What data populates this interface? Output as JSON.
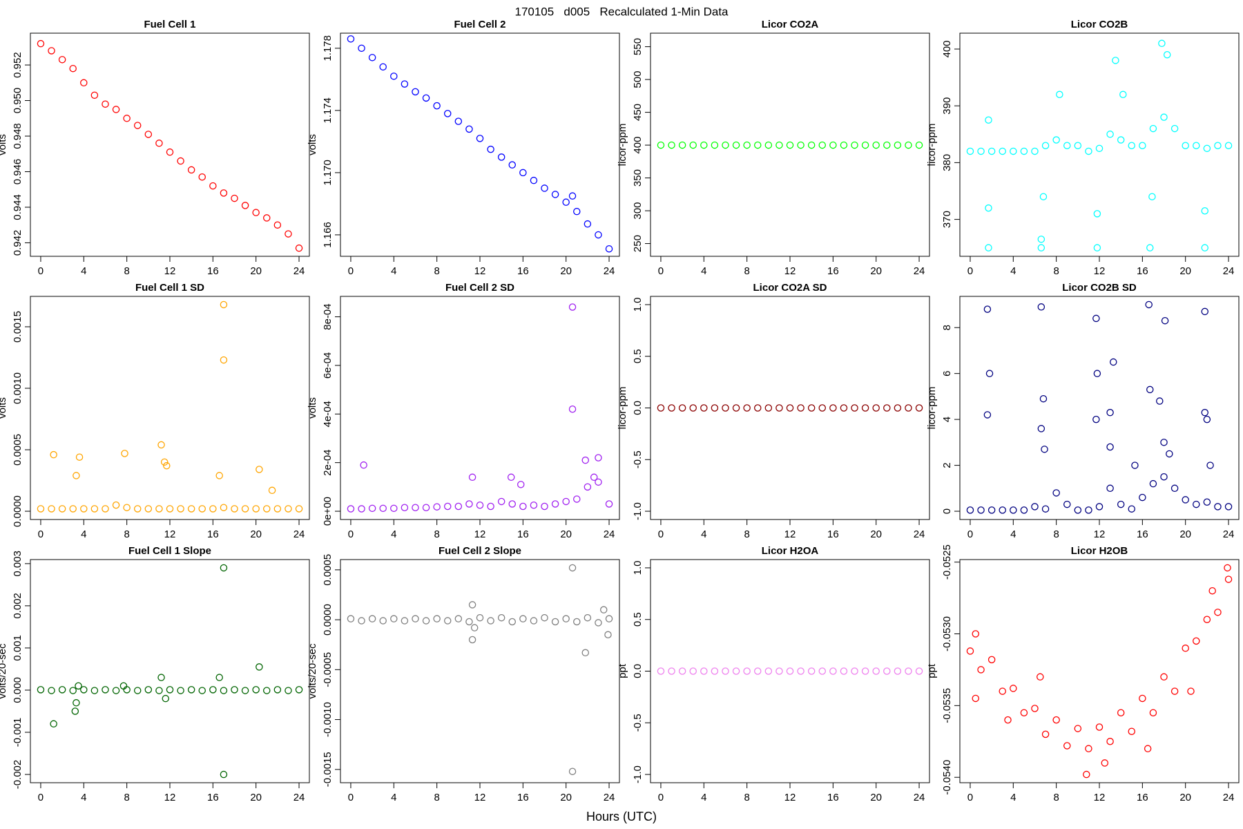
{
  "title": "170105   d005   Recalculated 1-Min Data",
  "xlabel": "Hours (UTC)",
  "chart_data": [
    {
      "type": "scatter",
      "title": "Fuel Cell 1",
      "ylabel": "volts",
      "color": "#ff0000",
      "x": [
        0,
        1,
        2,
        3,
        4,
        5,
        6,
        7,
        8,
        9,
        10,
        11,
        12,
        13,
        14,
        15,
        16,
        17,
        18,
        19,
        20,
        21,
        22,
        23,
        24
      ],
      "values": [
        0.9532,
        0.9528,
        0.9523,
        0.9518,
        0.951,
        0.9503,
        0.9498,
        0.9495,
        0.949,
        0.9486,
        0.9481,
        0.9476,
        0.9471,
        0.9466,
        0.9461,
        0.9457,
        0.9452,
        0.9448,
        0.9445,
        0.9441,
        0.9437,
        0.9434,
        0.943,
        0.9425,
        0.9417
      ],
      "xlim": [
        -0.96,
        24.96
      ],
      "xticks": [
        0,
        4,
        8,
        12,
        16,
        20,
        24
      ],
      "ylim": [
        0.94124,
        0.95379
      ],
      "yticks": [
        0.942,
        0.944,
        0.946,
        0.948,
        {
          "value": 0.95,
          "label": "0.950"
        },
        0.952
      ]
    },
    {
      "type": "scatter",
      "title": "Fuel Cell 2",
      "ylabel": "volts",
      "color": "#0000ff",
      "x": [
        0,
        1,
        2,
        3,
        4,
        5,
        6,
        7,
        8,
        9,
        10,
        11,
        12,
        13,
        14,
        15,
        16,
        17,
        18,
        19,
        20,
        21,
        22,
        23,
        24,
        20.6
      ],
      "values": [
        1.1786,
        1.178,
        1.1774,
        1.1768,
        1.1762,
        1.1757,
        1.1752,
        1.1748,
        1.1743,
        1.1738,
        1.1733,
        1.1728,
        1.1722,
        1.1715,
        1.171,
        1.1705,
        1.17,
        1.1695,
        1.169,
        1.1686,
        1.1681,
        1.1675,
        1.1667,
        1.166,
        1.1651,
        1.1685
      ],
      "xlim": [
        -0.96,
        24.96
      ],
      "xticks": [
        0,
        4,
        8,
        12,
        16,
        20,
        24
      ],
      "ylim": [
        1.16462,
        1.17897
      ],
      "yticks": [
        1.166,
        {
          "value": 1.17,
          "label": "1.170"
        },
        1.174,
        1.178
      ]
    },
    {
      "type": "scatter",
      "title": "Licor CO2A",
      "ylabel": "licor-ppm",
      "color": "#00ff00",
      "x": [
        0,
        1,
        2,
        3,
        4,
        5,
        6,
        7,
        8,
        9,
        10,
        11,
        12,
        13,
        14,
        15,
        16,
        17,
        18,
        19,
        20,
        21,
        22,
        23,
        24
      ],
      "values": [
        400,
        400,
        400,
        400,
        400,
        400,
        400,
        400,
        400,
        400,
        400,
        400,
        400,
        400,
        400,
        400,
        400,
        400,
        400,
        400,
        400,
        400,
        400,
        400,
        400
      ],
      "xlim": [
        -0.96,
        24.96
      ],
      "xticks": [
        0,
        4,
        8,
        12,
        16,
        20,
        24
      ],
      "ylim": [
        230.6,
        570.6
      ],
      "yticks": [
        250,
        300,
        350,
        400,
        450,
        500,
        550
      ]
    },
    {
      "type": "scatter",
      "title": "Licor CO2B",
      "ylabel": "licor-ppm",
      "color": "#00ffff",
      "x": [
        0,
        1,
        2,
        3,
        4,
        5,
        6,
        7,
        8,
        9,
        10,
        11,
        12,
        13,
        14,
        15,
        16,
        17,
        18,
        19,
        20,
        21,
        22,
        23,
        24,
        1.7,
        1.7,
        1.7,
        6.6,
        6.6,
        6.8,
        11.8,
        11.8,
        13.5,
        16.7,
        16.9,
        17.8,
        18.3,
        21.8,
        21.8,
        8.3,
        14.2
      ],
      "values": [
        382,
        382,
        382,
        382,
        382,
        382,
        382,
        383,
        384,
        383,
        383,
        382,
        382.5,
        385,
        384,
        383,
        383,
        386,
        388,
        386,
        383,
        383,
        382.5,
        383,
        383,
        387.5,
        365,
        372,
        365,
        366.5,
        374,
        365,
        371,
        398,
        365,
        374,
        401,
        399,
        365,
        371.5,
        392,
        392
      ],
      "xlim": [
        -0.96,
        24.96
      ],
      "xticks": [
        0,
        4,
        8,
        12,
        16,
        20,
        24
      ],
      "ylim": [
        363.5,
        402.8
      ],
      "yticks": [
        370,
        380,
        390,
        400
      ]
    },
    {
      "type": "scatter",
      "title": "Fuel Cell 1 SD",
      "ylabel": "volts",
      "color": "#ffa500",
      "x": [
        0,
        1,
        2,
        3,
        4,
        5,
        6,
        7,
        8,
        9,
        10,
        11,
        12,
        13,
        14,
        15,
        16,
        17,
        18,
        19,
        20,
        21,
        22,
        23,
        24,
        1.2,
        3.3,
        3.6,
        7.8,
        11.2,
        11.5,
        11.7,
        16.6,
        17,
        17,
        20.3,
        21.5
      ],
      "values": [
        2e-05,
        2e-05,
        2e-05,
        2e-05,
        2e-05,
        2e-05,
        2e-05,
        5e-05,
        3e-05,
        2e-05,
        2e-05,
        2e-05,
        2e-05,
        2e-05,
        2e-05,
        2e-05,
        2e-05,
        3e-05,
        2e-05,
        2e-05,
        2e-05,
        2e-05,
        2e-05,
        2e-05,
        2e-05,
        0.00046,
        0.00029,
        0.00044,
        0.00047,
        0.00054,
        0.0004,
        0.00037,
        0.00029,
        0.00168,
        0.00123,
        0.00034,
        0.00017
      ],
      "xlim": [
        -0.96,
        24.96
      ],
      "xticks": [
        0,
        4,
        8,
        12,
        16,
        20,
        24
      ],
      "ylim": [
        -6.72e-05,
        0.0017472
      ],
      "yticks": [
        {
          "value": 0,
          "label": "0.0000"
        },
        0.0005,
        {
          "value": 0.001,
          "label": "0.0010"
        },
        0.0015
      ]
    },
    {
      "type": "scatter",
      "title": "Fuel Cell 2 SD",
      "ylabel": "volts",
      "color": "#a020f0",
      "x": [
        0,
        1,
        2,
        3,
        4,
        5,
        6,
        7,
        8,
        9,
        10,
        11,
        12,
        13,
        14,
        15,
        16,
        17,
        18,
        19,
        20,
        21,
        22,
        23,
        24,
        1.2,
        20.6,
        20.6,
        21.8,
        23,
        11.3,
        14.9,
        22.6,
        15.8
      ],
      "values": [
        1e-05,
        1e-05,
        1.2e-05,
        1.2e-05,
        1.2e-05,
        1.5e-05,
        1.5e-05,
        1.5e-05,
        1.8e-05,
        2e-05,
        2e-05,
        3e-05,
        2.5e-05,
        2e-05,
        4e-05,
        3e-05,
        2e-05,
        2.5e-05,
        2e-05,
        3e-05,
        4e-05,
        5e-05,
        0.0001,
        0.00012,
        3e-05,
        0.00019,
        0.00084,
        0.00042,
        0.00021,
        0.00022,
        0.00014,
        0.00014,
        0.00014,
        0.00011
      ],
      "xlim": [
        -0.96,
        24.96
      ],
      "xticks": [
        0,
        4,
        8,
        12,
        16,
        20,
        24
      ],
      "ylim": [
        -3.4e-05,
        0.000884
      ],
      "yticks": [
        {
          "value": 0,
          "label": "0e+00"
        },
        {
          "value": 0.0002,
          "label": "2e-04"
        },
        {
          "value": 0.0004,
          "label": "4e-04"
        },
        {
          "value": 0.0006,
          "label": "6e-04"
        },
        {
          "value": 0.0008,
          "label": "8e-04"
        }
      ]
    },
    {
      "type": "scatter",
      "title": "Licor CO2A SD",
      "ylabel": "licor-ppm",
      "color": "#8b0000",
      "x": [
        0,
        1,
        2,
        3,
        4,
        5,
        6,
        7,
        8,
        9,
        10,
        11,
        12,
        13,
        14,
        15,
        16,
        17,
        18,
        19,
        20,
        21,
        22,
        23,
        24
      ],
      "values": [
        0,
        0,
        0,
        0,
        0,
        0,
        0,
        0,
        0,
        0,
        0,
        0,
        0,
        0,
        0,
        0,
        0,
        0,
        0,
        0,
        0,
        0,
        0,
        0,
        0
      ],
      "xlim": [
        -0.96,
        24.96
      ],
      "xticks": [
        0,
        4,
        8,
        12,
        16,
        20,
        24
      ],
      "ylim": [
        -1.08,
        1.08
      ],
      "yticks": [
        {
          "value": -1,
          "label": "-1.0"
        },
        -0.5,
        {
          "value": 0,
          "label": "0.0"
        },
        0.5,
        {
          "value": 1,
          "label": "1.0"
        }
      ]
    },
    {
      "type": "scatter",
      "title": "Licor CO2B SD",
      "ylabel": "licor-ppm",
      "color": "#000080",
      "x": [
        0,
        1,
        2,
        3,
        4,
        5,
        6,
        7,
        8,
        9,
        10,
        11,
        12,
        13,
        14,
        15,
        16,
        17,
        18,
        19,
        20,
        21,
        22,
        23,
        24,
        1.6,
        1.6,
        1.8,
        6.6,
        6.6,
        6.8,
        6.9,
        11.7,
        11.7,
        11.8,
        13.3,
        13,
        16.6,
        16.7,
        17.6,
        18.1,
        18,
        21.8,
        21.8,
        22,
        22.3,
        13,
        18.5,
        15.3
      ],
      "values": [
        0.05,
        0.05,
        0.05,
        0.05,
        0.05,
        0.05,
        0.2,
        0.1,
        0.8,
        0.3,
        0.05,
        0.05,
        0.2,
        1,
        0.3,
        0.1,
        0.6,
        1.2,
        1.5,
        1,
        0.5,
        0.3,
        0.4,
        0.2,
        0.2,
        8.8,
        4.2,
        6,
        8.9,
        3.6,
        4.9,
        2.7,
        8.4,
        4,
        6,
        6.5,
        4.3,
        9,
        5.3,
        4.8,
        8.3,
        3,
        8.7,
        4.3,
        4,
        2,
        2.8,
        2.5,
        2
      ],
      "xlim": [
        -0.96,
        24.96
      ],
      "xticks": [
        0,
        4,
        8,
        12,
        16,
        20,
        24
      ],
      "ylim": [
        -0.36,
        9.36
      ],
      "yticks": [
        0,
        2,
        4,
        6,
        8
      ]
    },
    {
      "type": "scatter",
      "title": "Fuel Cell 1 Slope",
      "ylabel": "volts/20-sec",
      "color": "#006400",
      "x": [
        0,
        1,
        2,
        3,
        4,
        5,
        6,
        7,
        8,
        9,
        10,
        11,
        12,
        13,
        14,
        15,
        16,
        17,
        18,
        19,
        20,
        21,
        22,
        23,
        24,
        1.2,
        3.2,
        3.3,
        3.5,
        11.2,
        16.6,
        17,
        17,
        20.3,
        11.6,
        7.7
      ],
      "values": [
        1e-05,
        -1e-05,
        1e-05,
        -1e-05,
        1e-05,
        -1e-05,
        1e-05,
        -1e-05,
        1e-05,
        -1e-05,
        1e-05,
        -1e-05,
        1e-05,
        -1e-05,
        1e-05,
        -1e-05,
        1e-05,
        -1e-05,
        1e-05,
        -1e-05,
        1e-05,
        -1e-05,
        1e-05,
        -1e-05,
        1e-05,
        -0.0008,
        -0.0005,
        -0.0003,
        0.0001,
        0.0003,
        0.0003,
        0.0029,
        -0.002,
        0.00055,
        -0.0002,
        0.0001
      ],
      "xlim": [
        -0.96,
        24.96
      ],
      "xticks": [
        0,
        4,
        8,
        12,
        16,
        20,
        24
      ],
      "ylim": [
        -0.002196,
        0.003096
      ],
      "yticks": [
        -0.002,
        -0.001,
        {
          "value": 0,
          "label": "0.000"
        },
        0.001,
        0.002,
        0.003
      ]
    },
    {
      "type": "scatter",
      "title": "Fuel Cell 2 Slope",
      "ylabel": "volts/20-sec",
      "color": "#7f7f7f",
      "x": [
        0,
        1,
        2,
        3,
        4,
        5,
        6,
        7,
        8,
        9,
        10,
        11,
        12,
        13,
        14,
        15,
        16,
        17,
        18,
        19,
        20,
        21,
        22,
        23,
        24,
        20.6,
        20.6,
        21.8,
        11.3,
        11.3,
        11.5,
        23.9,
        23.5
      ],
      "values": [
        1e-05,
        -1e-05,
        1e-05,
        -1e-05,
        1e-05,
        -1e-05,
        1e-05,
        -1e-05,
        1e-05,
        -1e-05,
        1e-05,
        -2e-05,
        2e-05,
        -1e-05,
        2e-05,
        -2e-05,
        1e-05,
        -1e-05,
        2e-05,
        -2e-05,
        1e-05,
        -2e-05,
        2e-05,
        -3e-05,
        1e-05,
        0.00052,
        -0.00152,
        -0.00033,
        0.00015,
        -0.0002,
        -8e-05,
        -0.00015,
        0.0001
      ],
      "xlim": [
        -0.96,
        24.96
      ],
      "xticks": [
        0,
        4,
        8,
        12,
        16,
        20,
        24
      ],
      "ylim": [
        -0.0016328,
        0.0006028
      ],
      "yticks": [
        -0.0015,
        {
          "value": -0.001,
          "label": "-0.0010"
        },
        -0.0005,
        {
          "value": 0,
          "label": "0.0000"
        },
        0.0005
      ]
    },
    {
      "type": "scatter",
      "title": "Licor H2OA",
      "ylabel": "ppt",
      "color": "#ee82ee",
      "x": [
        0,
        1,
        2,
        3,
        4,
        5,
        6,
        7,
        8,
        9,
        10,
        11,
        12,
        13,
        14,
        15,
        16,
        17,
        18,
        19,
        20,
        21,
        22,
        23,
        24
      ],
      "values": [
        0,
        0,
        0,
        0,
        0,
        0,
        0,
        0,
        0,
        0,
        0,
        0,
        0,
        0,
        0,
        0,
        0,
        0,
        0,
        0,
        0,
        0,
        0,
        0,
        0
      ],
      "xlim": [
        -0.96,
        24.96
      ],
      "xticks": [
        0,
        4,
        8,
        12,
        16,
        20,
        24
      ],
      "ylim": [
        -1.08,
        1.08
      ],
      "yticks": [
        {
          "value": -1,
          "label": "-1.0"
        },
        -0.5,
        {
          "value": 0,
          "label": "0.0"
        },
        0.5,
        {
          "value": 1,
          "label": "1.0"
        }
      ]
    },
    {
      "type": "scatter",
      "title": "Licor H2OB",
      "ylabel": "ppt",
      "color": "#ff0000",
      "x": [
        0,
        1,
        2,
        3,
        4,
        5,
        6,
        7,
        8,
        9,
        10,
        11,
        12,
        13,
        14,
        15,
        16,
        17,
        18,
        19,
        20,
        21,
        22,
        23,
        24,
        0.5,
        0.5,
        10.8,
        12.5,
        6.5,
        16.5,
        23.9,
        22.5,
        20.5,
        3.5
      ],
      "values": [
        -0.05312,
        -0.05325,
        -0.05318,
        -0.0534,
        -0.05338,
        -0.05355,
        -0.05352,
        -0.0537,
        -0.0536,
        -0.05378,
        -0.05366,
        -0.0538,
        -0.05365,
        -0.05375,
        -0.05355,
        -0.05368,
        -0.05345,
        -0.05355,
        -0.0533,
        -0.0534,
        -0.0531,
        -0.05305,
        -0.0529,
        -0.05285,
        -0.05262,
        -0.053,
        -0.05345,
        -0.05398,
        -0.0539,
        -0.0533,
        -0.0538,
        -0.05254,
        -0.0527,
        -0.0534,
        -0.0536
      ],
      "xlim": [
        -0.96,
        24.96
      ],
      "xticks": [
        0,
        4,
        8,
        12,
        16,
        20,
        24
      ],
      "ylim": [
        -0.0540376,
        -0.0524824
      ],
      "yticks": [
        {
          "value": -0.054,
          "label": "-0.0540"
        },
        -0.0535,
        {
          "value": -0.053,
          "label": "-0.0530"
        },
        -0.0525
      ]
    }
  ]
}
